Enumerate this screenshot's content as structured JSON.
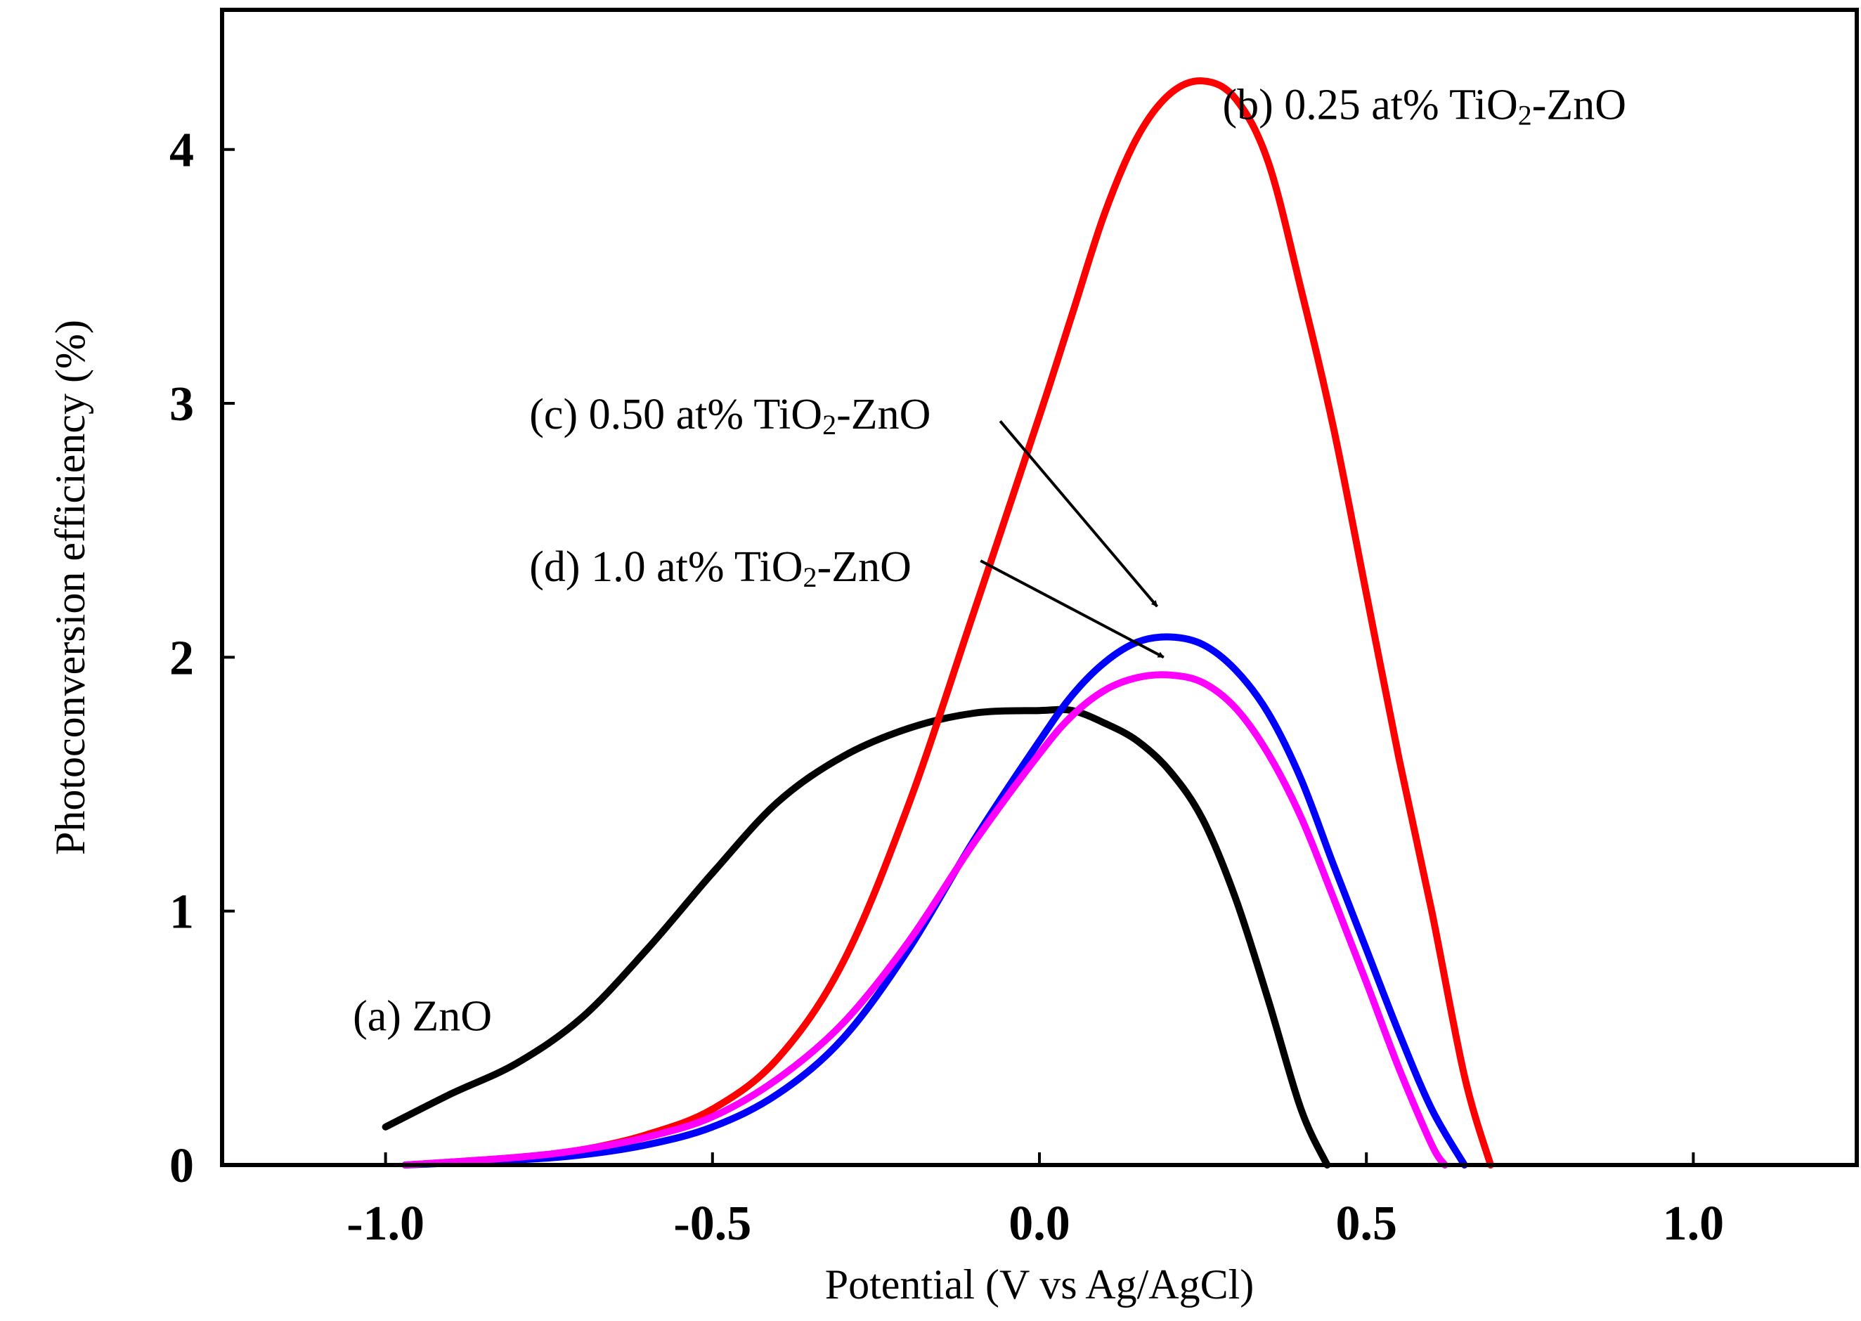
{
  "chart_data": {
    "type": "line",
    "title": "",
    "xlabel": "Potential (V vs Ag/AgCl)",
    "ylabel": "Photoconversion efficiency (%)",
    "xlim": [
      -1.25,
      1.25
    ],
    "ylim": [
      0,
      4.55
    ],
    "xticks": [
      -1.0,
      -0.5,
      0.0,
      0.5,
      1.0
    ],
    "xtick_labels": [
      "-1.0",
      "-0.5",
      "0.0",
      "0.5",
      "1.0"
    ],
    "yticks": [
      0,
      1,
      2,
      3,
      4
    ],
    "ytick_labels": [
      "0",
      "1",
      "2",
      "3",
      "4"
    ],
    "grid": false,
    "series": [
      {
        "name": "(a) ZnO",
        "color": "#000000",
        "x": [
          -1.0,
          -0.9,
          -0.8,
          -0.7,
          -0.6,
          -0.5,
          -0.4,
          -0.3,
          -0.2,
          -0.1,
          0.0,
          0.05,
          0.1,
          0.15,
          0.2,
          0.25,
          0.3,
          0.35,
          0.4,
          0.44
        ],
        "y": [
          0.15,
          0.28,
          0.4,
          0.58,
          0.85,
          1.15,
          1.43,
          1.61,
          1.72,
          1.78,
          1.79,
          1.79,
          1.74,
          1.67,
          1.55,
          1.36,
          1.05,
          0.65,
          0.22,
          0.0
        ]
      },
      {
        "name": "(b) 0.25 at% TiO2-ZnO",
        "color": "#ff0000",
        "x": [
          -0.97,
          -0.8,
          -0.7,
          -0.6,
          -0.5,
          -0.4,
          -0.3,
          -0.2,
          -0.1,
          0.0,
          0.05,
          0.1,
          0.15,
          0.2,
          0.25,
          0.3,
          0.35,
          0.4,
          0.45,
          0.5,
          0.55,
          0.6,
          0.65,
          0.69
        ],
        "y": [
          0.0,
          0.03,
          0.06,
          0.12,
          0.22,
          0.42,
          0.8,
          1.42,
          2.18,
          2.95,
          3.35,
          3.75,
          4.05,
          4.22,
          4.27,
          4.2,
          3.95,
          3.45,
          2.9,
          2.25,
          1.6,
          1.0,
          0.35,
          0.0
        ]
      },
      {
        "name": "(c) 0.50 at% TiO2-ZnO",
        "color": "#0000ff",
        "x": [
          -0.97,
          -0.8,
          -0.7,
          -0.6,
          -0.5,
          -0.4,
          -0.3,
          -0.2,
          -0.1,
          0.0,
          0.05,
          0.1,
          0.15,
          0.2,
          0.25,
          0.3,
          0.35,
          0.4,
          0.45,
          0.5,
          0.55,
          0.6,
          0.65
        ],
        "y": [
          0.0,
          0.02,
          0.04,
          0.08,
          0.15,
          0.28,
          0.5,
          0.85,
          1.28,
          1.67,
          1.85,
          1.98,
          2.06,
          2.08,
          2.05,
          1.95,
          1.78,
          1.52,
          1.18,
          0.85,
          0.52,
          0.22,
          0.0
        ]
      },
      {
        "name": "(d) 1.0 at% TiO2-ZnO",
        "color": "#ff00ff",
        "x": [
          -0.97,
          -0.8,
          -0.7,
          -0.6,
          -0.5,
          -0.4,
          -0.3,
          -0.2,
          -0.1,
          0.0,
          0.05,
          0.1,
          0.15,
          0.2,
          0.25,
          0.3,
          0.35,
          0.4,
          0.45,
          0.5,
          0.55,
          0.6,
          0.62
        ],
        "y": [
          0.0,
          0.03,
          0.06,
          0.11,
          0.19,
          0.34,
          0.56,
          0.88,
          1.27,
          1.62,
          1.77,
          1.87,
          1.92,
          1.93,
          1.9,
          1.8,
          1.62,
          1.37,
          1.05,
          0.72,
          0.38,
          0.08,
          0.0
        ]
      }
    ],
    "annotations": {
      "a": {
        "prefix": "(a) ZnO",
        "x": -1.05,
        "y": 0.53
      },
      "b": {
        "prefix": "(b) 0.25 at% TiO",
        "sub": "2",
        "suffix": "-ZnO",
        "x": 0.28,
        "y": 4.12
      },
      "c": {
        "prefix": "(c) 0.50 at% TiO",
        "sub": "2",
        "suffix": "-ZnO",
        "x": -0.78,
        "y": 2.9,
        "arrow_from": [
          -0.06,
          2.93
        ],
        "arrow_to": [
          0.18,
          2.2
        ]
      },
      "d": {
        "prefix": "(d) 1.0 at% TiO",
        "sub": "2",
        "suffix": "-ZnO",
        "x": -0.78,
        "y": 2.3,
        "arrow_from": [
          -0.09,
          2.38
        ],
        "arrow_to": [
          0.19,
          2.0
        ]
      }
    }
  }
}
